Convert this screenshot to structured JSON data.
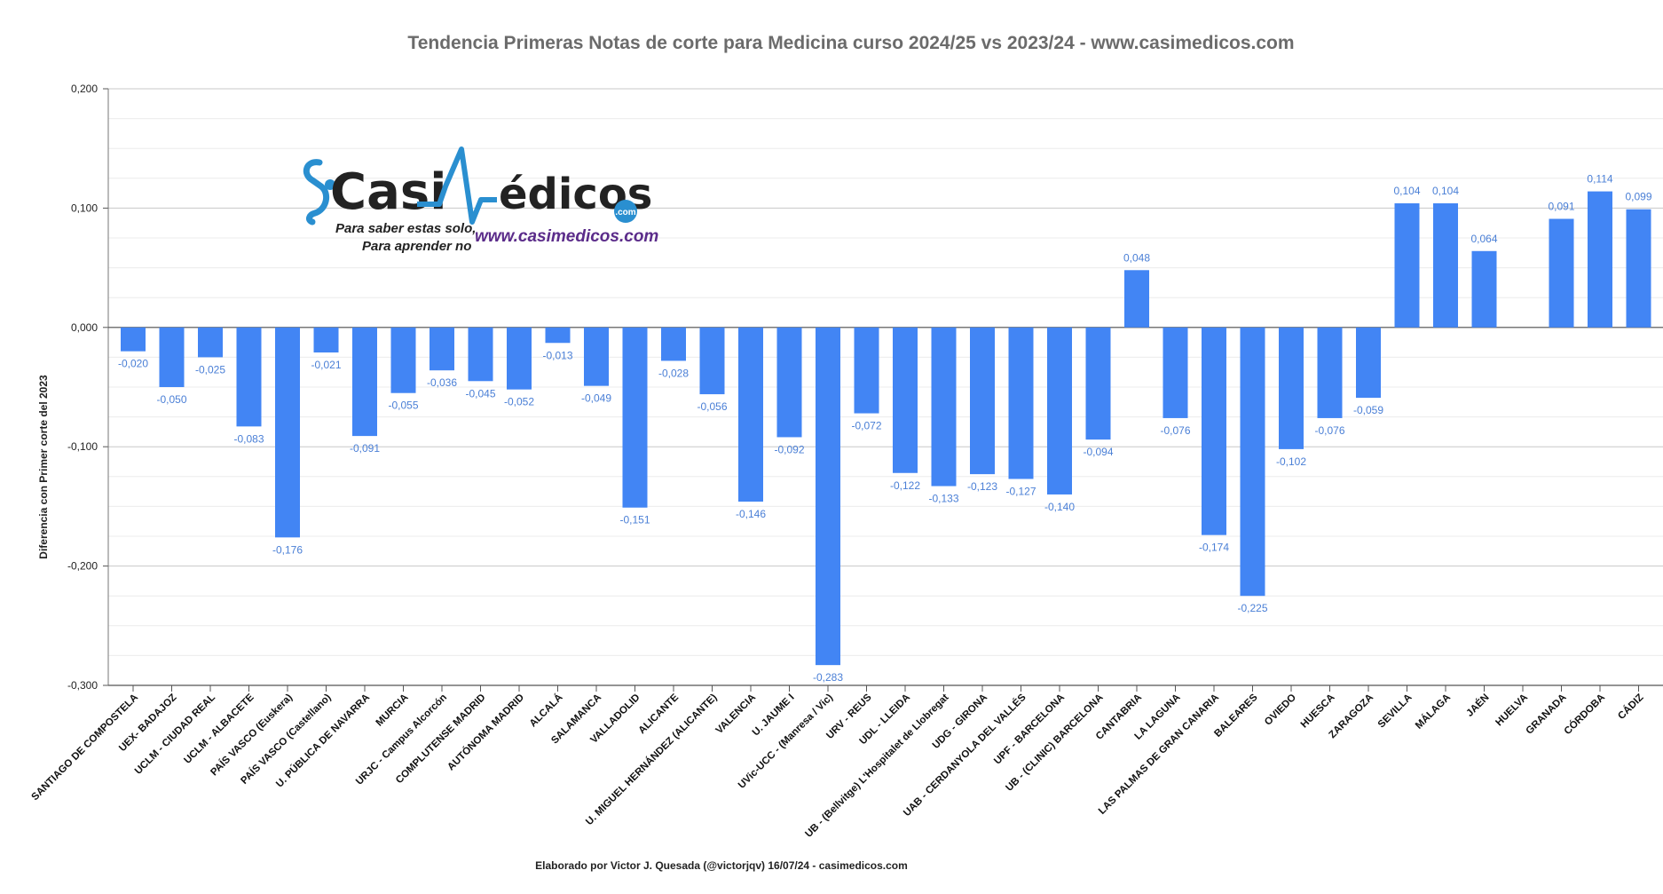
{
  "chart_data": {
    "type": "bar",
    "title": "Tendencia Primeras Notas de corte para Medicina curso 2024/25 vs 2023/24 -  www.casimedicos.com",
    "ylabel": "Diferencia con Primer corte del 2023",
    "footer": "Elaborado por Victor J. Quesada (@victorjqv) 16/07/24 - casimedicos.com",
    "ylim": [
      -0.3,
      0.2
    ],
    "yticks": [
      0.2,
      0.1,
      0.0,
      -0.1,
      -0.2,
      -0.3
    ],
    "ytick_labels": [
      "0,200",
      "0,100",
      "0,000",
      "-0,100",
      "-0,200",
      "-0,300"
    ],
    "grid": true,
    "bar_color": "#4285f4",
    "label_color": "#4a7fd6",
    "categories": [
      "SANTIAGO DE COMPOSTELA",
      "UEX- BADAJOZ",
      "UCLM - CIUDAD REAL",
      "UCLM - ALBACETE",
      "PAÍS VASCO (Euskera)",
      "PAÍS VASCO (Castellano)",
      "U. PÚBLICA DE NAVARRA",
      "MURCIA",
      "URJC - Campus Alcorcón",
      "COMPLUTENSE MADRID",
      "AUTÓNOMA MADRID",
      "ALCALÁ",
      "SALAMANCA",
      "VALLADOLID",
      "ALICANTE",
      "U. MIGUEL HERNÁNDEZ (ALICANTE)",
      "VALENCIA",
      "U. JAUME I",
      "UVic-UCC - (Manresa / Vic)",
      "URV - REUS",
      "UDL - LLEIDA",
      "UB - (Bellvitge) L'Hospitalet de Llobregat",
      "UDG - GIRONA",
      "UAB - CERDANYOLA DEL VALLÉS",
      "UPF - BARCELONA",
      "UB - (CLINIC) BARCELONA",
      "CANTABRIA",
      "LA LAGUNA",
      "LAS PALMAS DE GRAN CANARIA",
      "BALEARES",
      "OVIEDO",
      "HUESCA",
      "ZARAGOZA",
      "SEVILLA",
      "MÁLAGA",
      "JAÉN",
      "HUELVA",
      "GRANADA",
      "CÓRDOBA",
      "CÁDIZ"
    ],
    "values": [
      -0.02,
      -0.05,
      -0.025,
      -0.083,
      -0.176,
      -0.021,
      -0.091,
      -0.055,
      -0.036,
      -0.045,
      -0.052,
      -0.013,
      -0.049,
      -0.151,
      -0.028,
      -0.056,
      -0.146,
      -0.092,
      -0.283,
      -0.072,
      -0.122,
      -0.133,
      -0.123,
      -0.127,
      -0.14,
      -0.094,
      0.048,
      -0.076,
      -0.174,
      -0.225,
      -0.102,
      -0.076,
      -0.059,
      0.104,
      0.104,
      0.064,
      null,
      0.091,
      0.114,
      0.099
    ],
    "value_labels": [
      "-0,020",
      "-0,050",
      "-0,025",
      "-0,083",
      "-0,176",
      "-0,021",
      "-0,091",
      "-0,055",
      "-0,036",
      "-0,045",
      "-0,052",
      "-0,013",
      "-0,049",
      "-0,151",
      "-0,028",
      "-0,056",
      "-0,146",
      "-0,092",
      "-0,283",
      "-0,072",
      "-0,122",
      "-0,133",
      "-0,123",
      "-0,127",
      "-0,140",
      "-0,094",
      "0,048",
      "-0,076",
      "-0,174",
      "-0,225",
      "-0,102",
      "-0,076",
      "-0,059",
      "0,104",
      "0,104",
      "0,064",
      "",
      "0,091",
      "0,114",
      "0,099"
    ]
  },
  "logo": {
    "word_left": "Casi",
    "word_right": "édicos",
    "com": ".com",
    "tagline_1": "Para saber estas solo,",
    "tagline_2": "Para aprender no",
    "url": "www.casimedicos.com",
    "blue": "#2a8fd0",
    "dark": "#222222",
    "purple": "#5b2c8a"
  }
}
